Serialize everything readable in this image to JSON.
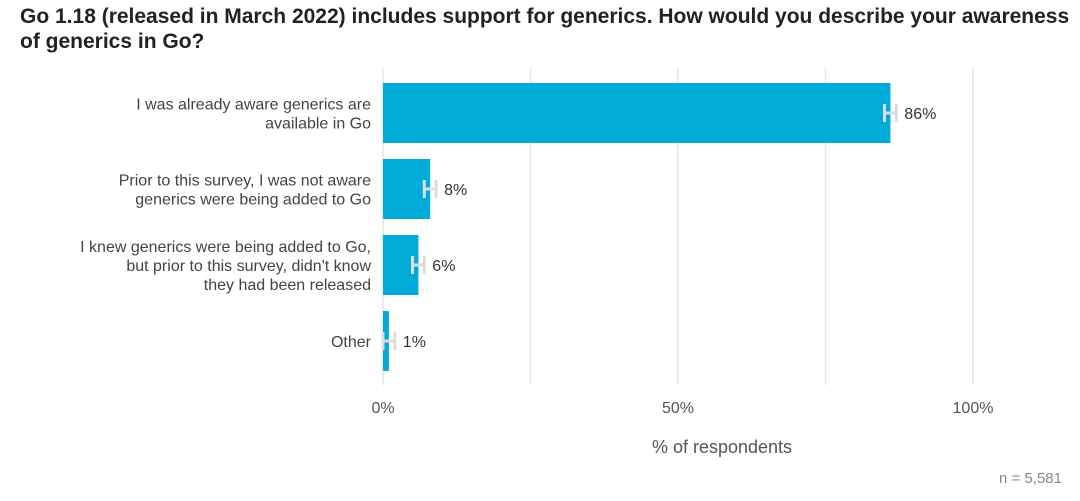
{
  "chart_data": {
    "type": "bar",
    "orientation": "horizontal",
    "title": "Go 1.18 (released in March 2022) includes support for generics. How would you describe your awareness of generics in Go?",
    "categories": [
      [
        "I was already aware generics are",
        "available in Go"
      ],
      [
        "Prior to this survey, I was not aware",
        "generics were being added to Go"
      ],
      [
        "I knew generics were being added to Go,",
        "but prior to this survey, didn't know",
        "they had been released"
      ],
      [
        "Other"
      ]
    ],
    "values": [
      86,
      8,
      6,
      1
    ],
    "value_labels": [
      "86%",
      "8%",
      "6%",
      "1%"
    ],
    "error_margin": 1,
    "xlabel": "% of respondents",
    "xlim": [
      0,
      100
    ],
    "xticks": [
      0,
      50,
      100
    ],
    "xtick_labels": [
      "0%",
      "50%",
      "100%"
    ],
    "gridlines": [
      0,
      25,
      50,
      75,
      100
    ],
    "grid": true,
    "bar_color": "#00acd7",
    "error_color": "#dddddd",
    "note": "n =  5,581"
  }
}
